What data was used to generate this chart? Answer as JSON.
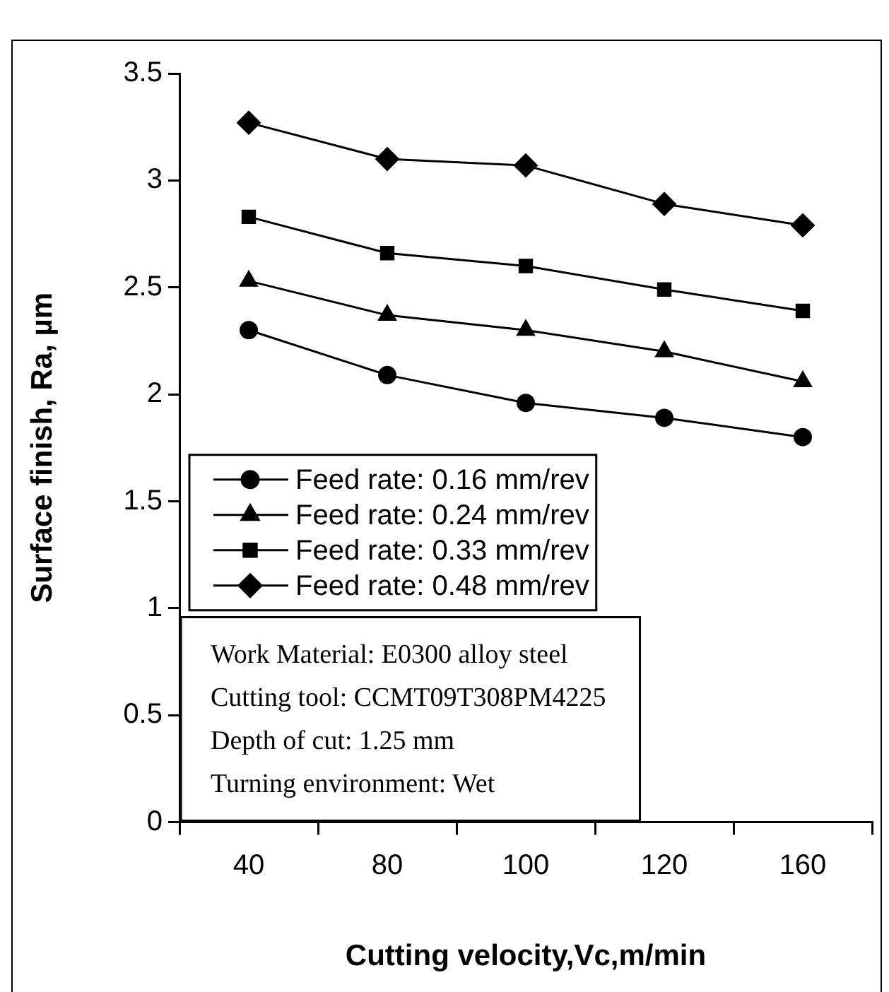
{
  "chart_data": {
    "type": "line",
    "xlabel": "Cutting velocity,Vc,m/min",
    "ylabel": "Surface finish, Ra, µm",
    "categories": [
      "40",
      "80",
      "100",
      "120",
      "160"
    ],
    "series": [
      {
        "name": "Feed rate: 0.16 mm/rev",
        "color": "#000000",
        "marker": "circle",
        "values": [
          2.3,
          2.09,
          1.96,
          1.89,
          1.8
        ]
      },
      {
        "name": "Feed rate: 0.24 mm/rev",
        "color": "#000000",
        "marker": "triangle",
        "values": [
          2.53,
          2.37,
          2.3,
          2.2,
          2.06
        ]
      },
      {
        "name": "Feed rate: 0.33 mm/rev",
        "color": "#000000",
        "marker": "square",
        "values": [
          2.83,
          2.66,
          2.6,
          2.49,
          2.39
        ]
      },
      {
        "name": "Feed rate: 0.48 mm/rev",
        "color": "#000000",
        "marker": "diamond",
        "values": [
          3.27,
          3.1,
          3.07,
          2.89,
          2.79
        ]
      }
    ],
    "ylim": [
      0,
      3.5
    ],
    "yticks": [
      0,
      0.5,
      1,
      1.5,
      2,
      2.5,
      3,
      3.5
    ],
    "grid": false,
    "legend": "left",
    "line_style": "solid",
    "annotations": [
      "Work Material: E0300 alloy steel",
      "Cutting tool: CCMT09T308PM4225",
      "Depth of cut: 1.25 mm",
      "Turning environment: Wet"
    ]
  }
}
